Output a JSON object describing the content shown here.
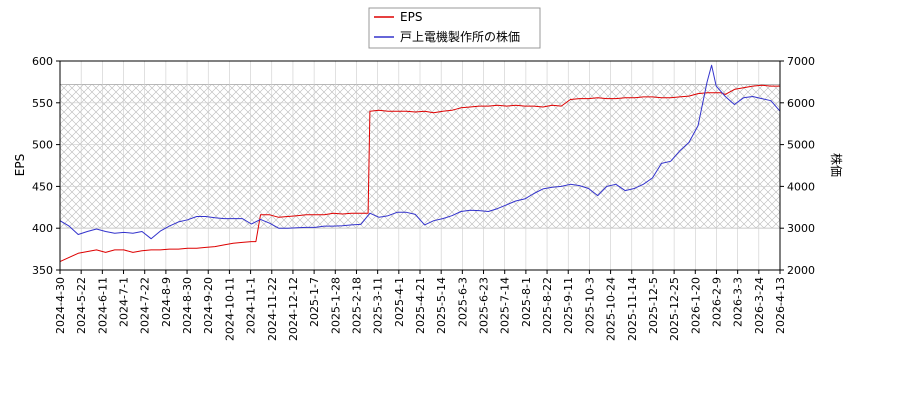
{
  "chart_data": {
    "type": "line",
    "title": "",
    "legend": {
      "placement": "top-center",
      "entries": [
        {
          "label": "EPS",
          "color": "#dd0000"
        },
        {
          "label": "戸上電機製作所の株価",
          "color": "#3333cc"
        }
      ]
    },
    "grid": true,
    "x_tick_labels": [
      "2024-4-30",
      "2024-5-22",
      "2024-6-11",
      "2024-7-1",
      "2024-7-22",
      "2024-8-9",
      "2024-8-30",
      "2024-9-20",
      "2024-10-11",
      "2024-11-1",
      "2024-11-22",
      "2024-12-12",
      "2025-1-7",
      "2025-1-28",
      "2025-2-18",
      "2025-3-11",
      "2025-4-1",
      "2025-4-21",
      "2025-5-14",
      "2025-6-3",
      "2025-6-23",
      "2025-7-14",
      "2025-8-1",
      "2025-8-22",
      "2025-9-11",
      "2025-10-3",
      "2025-10-24",
      "2025-11-14",
      "2025-12-5",
      "2025-12-25",
      "2026-1-20",
      "2026-2-9",
      "2026-3-3",
      "2026-3-24",
      "2026-4-13"
    ],
    "left_axis": {
      "label": "EPS",
      "ylim": [
        350,
        600
      ],
      "ticks": [
        350,
        400,
        450,
        500,
        550,
        600
      ]
    },
    "right_axis": {
      "label": "株価",
      "ylim": [
        2000,
        7000
      ],
      "ticks": [
        2000,
        3000,
        4000,
        5000,
        6000,
        7000
      ]
    },
    "eps_band": [
      400,
      572
    ],
    "series": [
      {
        "name": "EPS",
        "axis": "left",
        "color": "#dd0000",
        "points": [
          [
            0,
            360
          ],
          [
            2,
            370
          ],
          [
            4,
            374
          ],
          [
            5,
            371
          ],
          [
            6,
            374
          ],
          [
            7,
            374
          ],
          [
            8,
            371
          ],
          [
            9,
            373
          ],
          [
            10,
            374
          ],
          [
            11,
            374
          ],
          [
            12,
            375
          ],
          [
            13,
            375
          ],
          [
            14,
            376
          ],
          [
            15,
            376
          ],
          [
            16,
            377
          ],
          [
            17,
            378
          ],
          [
            18,
            380
          ],
          [
            19,
            382
          ],
          [
            20,
            383
          ],
          [
            21,
            384
          ],
          [
            21.5,
            384
          ],
          [
            22,
            416
          ],
          [
            23,
            416
          ],
          [
            24,
            413
          ],
          [
            25,
            414
          ],
          [
            26,
            415
          ],
          [
            27,
            416
          ],
          [
            28,
            416
          ],
          [
            29,
            416
          ],
          [
            30,
            418
          ],
          [
            31,
            417
          ],
          [
            32,
            418
          ],
          [
            33,
            418
          ],
          [
            33.8,
            418
          ],
          [
            34,
            540
          ],
          [
            35,
            541
          ],
          [
            36,
            540
          ],
          [
            37,
            540
          ],
          [
            38,
            540
          ],
          [
            39,
            539
          ],
          [
            40,
            540
          ],
          [
            41,
            538
          ],
          [
            42,
            540
          ],
          [
            43,
            541
          ],
          [
            44,
            544
          ],
          [
            45,
            545
          ],
          [
            46,
            546
          ],
          [
            47,
            546
          ],
          [
            48,
            547
          ],
          [
            49,
            546
          ],
          [
            50,
            547
          ],
          [
            51,
            546
          ],
          [
            52,
            546
          ],
          [
            53,
            545
          ],
          [
            54,
            547
          ],
          [
            55,
            546
          ],
          [
            56,
            554
          ],
          [
            57,
            555
          ],
          [
            58,
            555
          ],
          [
            59,
            556
          ],
          [
            60,
            555
          ],
          [
            61,
            555
          ],
          [
            62,
            556
          ],
          [
            63,
            556
          ],
          [
            64,
            557
          ],
          [
            65,
            557
          ],
          [
            66,
            556
          ],
          [
            67,
            556
          ],
          [
            68,
            557
          ],
          [
            69,
            558
          ],
          [
            70,
            561
          ],
          [
            71,
            562
          ],
          [
            72,
            562
          ],
          [
            72.5,
            562
          ],
          [
            73,
            560
          ],
          [
            74,
            566
          ],
          [
            75,
            568
          ],
          [
            76,
            570
          ],
          [
            77,
            571
          ],
          [
            78,
            570
          ],
          [
            79,
            570
          ]
        ]
      },
      {
        "name": "戸上電機製作所の株価",
        "axis": "right",
        "color": "#3333cc",
        "points": [
          [
            0,
            3180
          ],
          [
            1,
            3050
          ],
          [
            2,
            2850
          ],
          [
            3,
            2920
          ],
          [
            4,
            2980
          ],
          [
            5,
            2920
          ],
          [
            6,
            2880
          ],
          [
            7,
            2900
          ],
          [
            8,
            2880
          ],
          [
            9,
            2920
          ],
          [
            10,
            2750
          ],
          [
            11,
            2930
          ],
          [
            12,
            3050
          ],
          [
            13,
            3150
          ],
          [
            14,
            3200
          ],
          [
            15,
            3280
          ],
          [
            16,
            3280
          ],
          [
            17,
            3250
          ],
          [
            18,
            3230
          ],
          [
            19,
            3230
          ],
          [
            20,
            3230
          ],
          [
            21,
            3100
          ],
          [
            22,
            3210
          ],
          [
            23,
            3120
          ],
          [
            24,
            3000
          ],
          [
            25,
            3000
          ],
          [
            26,
            3010
          ],
          [
            27,
            3020
          ],
          [
            28,
            3020
          ],
          [
            29,
            3050
          ],
          [
            30,
            3050
          ],
          [
            31,
            3060
          ],
          [
            32,
            3080
          ],
          [
            33,
            3090
          ],
          [
            34,
            3360
          ],
          [
            35,
            3260
          ],
          [
            36,
            3300
          ],
          [
            37,
            3380
          ],
          [
            38,
            3380
          ],
          [
            39,
            3330
          ],
          [
            40,
            3080
          ],
          [
            41,
            3180
          ],
          [
            42,
            3230
          ],
          [
            43,
            3300
          ],
          [
            44,
            3400
          ],
          [
            45,
            3430
          ],
          [
            46,
            3420
          ],
          [
            47,
            3400
          ],
          [
            48,
            3470
          ],
          [
            49,
            3560
          ],
          [
            50,
            3650
          ],
          [
            51,
            3700
          ],
          [
            52,
            3830
          ],
          [
            53,
            3940
          ],
          [
            54,
            3980
          ],
          [
            55,
            4000
          ],
          [
            56,
            4050
          ],
          [
            57,
            4020
          ],
          [
            58,
            3950
          ],
          [
            59,
            3780
          ],
          [
            60,
            4000
          ],
          [
            61,
            4050
          ],
          [
            62,
            3900
          ],
          [
            63,
            3950
          ],
          [
            64,
            4050
          ],
          [
            65,
            4200
          ],
          [
            66,
            4550
          ],
          [
            67,
            4600
          ],
          [
            68,
            4850
          ],
          [
            69,
            5050
          ],
          [
            70,
            5450
          ],
          [
            71,
            6500
          ],
          [
            71.5,
            6900
          ],
          [
            72,
            6400
          ],
          [
            73,
            6150
          ],
          [
            74,
            5960
          ],
          [
            75,
            6120
          ],
          [
            76,
            6150
          ],
          [
            77,
            6100
          ],
          [
            78,
            6050
          ],
          [
            79,
            5800
          ]
        ]
      }
    ]
  }
}
